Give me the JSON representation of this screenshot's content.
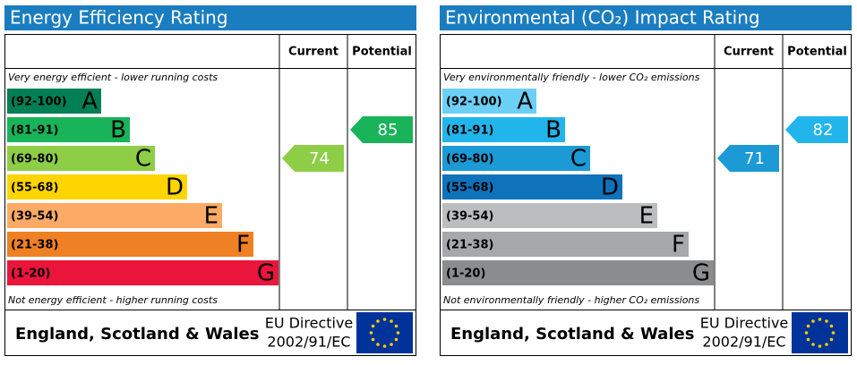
{
  "panels": [
    {
      "title": "Energy Efficiency Rating",
      "columns": [
        "Current",
        "Potential"
      ],
      "top_note": "Very energy efficient - lower running costs",
      "bands": [
        {
          "range": "(92-100)",
          "letter": "A",
          "color": "#008054"
        },
        {
          "range": "(81-91)",
          "letter": "B",
          "color": "#19b459"
        },
        {
          "range": "(69-80)",
          "letter": "C",
          "color": "#8dce46"
        },
        {
          "range": "(55-68)",
          "letter": "D",
          "color": "#ffd500"
        },
        {
          "range": "(39-54)",
          "letter": "E",
          "color": "#fcaa65"
        },
        {
          "range": "(21-38)",
          "letter": "F",
          "color": "#ef8023"
        },
        {
          "range": "(1-20)",
          "letter": "G",
          "color": "#e9153b"
        }
      ],
      "bottom_note": "Not energy efficient - higher running costs",
      "current": 74,
      "potential": 85,
      "region": "England, Scotland & Wales",
      "directive": [
        "EU Directive",
        "2002/91/EC"
      ]
    },
    {
      "title": "Environmental (CO₂) Impact Rating",
      "columns": [
        "Current",
        "Potential"
      ],
      "top_note": "Very environmentally friendly - lower CO₂ emissions",
      "bands": [
        {
          "range": "(92-100)",
          "letter": "A",
          "color": "#6ccff6"
        },
        {
          "range": "(81-91)",
          "letter": "B",
          "color": "#22b5eb"
        },
        {
          "range": "(69-80)",
          "letter": "C",
          "color": "#1b9ad6"
        },
        {
          "range": "(55-68)",
          "letter": "D",
          "color": "#0f73bc"
        },
        {
          "range": "(39-54)",
          "letter": "E",
          "color": "#bbbdbe"
        },
        {
          "range": "(21-38)",
          "letter": "F",
          "color": "#a6a8ab"
        },
        {
          "range": "(1-20)",
          "letter": "G",
          "color": "#8a8c8e"
        }
      ],
      "bottom_note": "Not environmentally friendly - higher CO₂ emissions",
      "current": 71,
      "potential": 82,
      "region": "England, Scotland & Wales",
      "directive": [
        "EU Directive",
        "2002/91/EC"
      ]
    }
  ]
}
